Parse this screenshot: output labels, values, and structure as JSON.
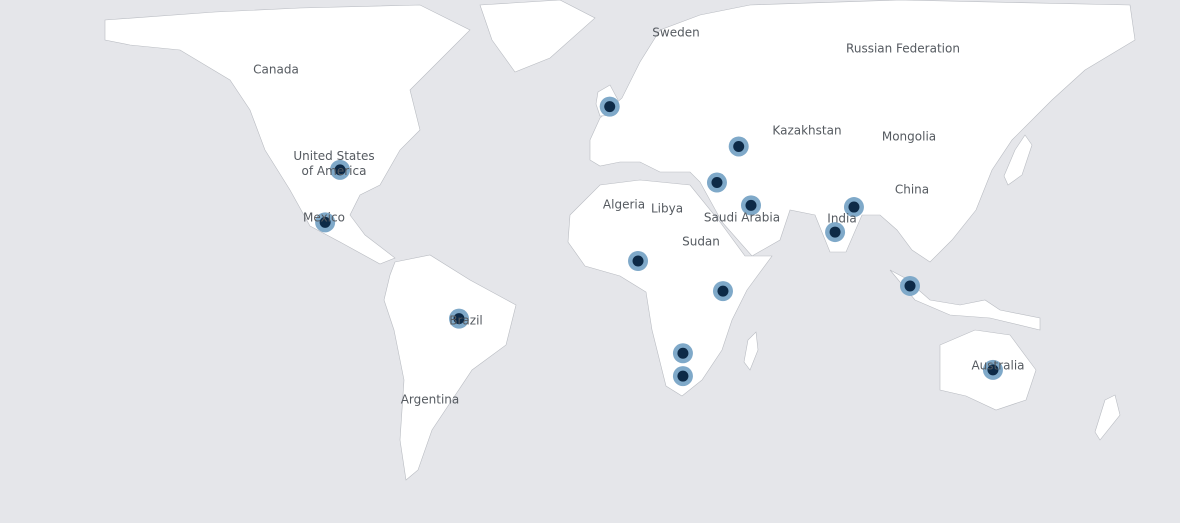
{
  "map": {
    "projection": "miller",
    "background_color": "#e5e6ea",
    "land_color": "#ffffff",
    "border_color": "#b9bcc2",
    "marker_outer_color": "#7fa9c9",
    "marker_inner_color": "#0d2a47"
  },
  "labels": {
    "sweden": "Sweden",
    "russia": "Russian Federation",
    "canada": "Canada",
    "kazakhstan": "Kazakhstan",
    "mongolia": "Mongolia",
    "usa": "United States of America",
    "china": "China",
    "algeria": "Algeria",
    "libya": "Libya",
    "saudi": "Saudi Arabia",
    "mexico": "Mexico",
    "india": "India",
    "sudan": "Sudan",
    "brazil": "Brazil",
    "australia": "Australia",
    "argentina": "Argentina"
  },
  "markers": [
    {
      "lat": 51.5,
      "lon": -0.1
    },
    {
      "lat": 41.7,
      "lon": 45.0
    },
    {
      "lat": 32.0,
      "lon": 37.4
    },
    {
      "lat": 25.5,
      "lon": 49.3
    },
    {
      "lat": 35.5,
      "lon": -94.4
    },
    {
      "lat": 20.5,
      "lon": -99.6
    },
    {
      "lat": -9.0,
      "lon": -52.8
    },
    {
      "lat": 8.8,
      "lon": 9.8
    },
    {
      "lat": -0.5,
      "lon": 39.5
    },
    {
      "lat": -19.5,
      "lon": 25.5
    },
    {
      "lat": -26.2,
      "lon": 25.5
    },
    {
      "lat": 17.6,
      "lon": 78.7
    },
    {
      "lat": 25.0,
      "lon": 85.3
    },
    {
      "lat": 1.1,
      "lon": 104.9
    },
    {
      "lat": -24.4,
      "lon": 133.9
    }
  ]
}
